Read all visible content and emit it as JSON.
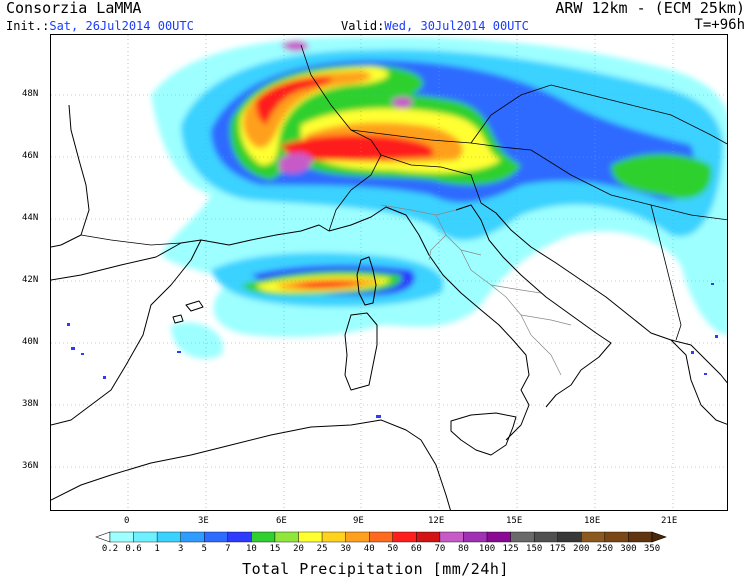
{
  "header": {
    "agency": "Consorzia LaMMA",
    "model": "ARW 12km - (ECM 25km)",
    "init_label": "Init.:",
    "init_value": "Sat, 26Jul2014 00UTC",
    "valid_label": "Valid:",
    "valid_value": "Wed, 30Jul2014 00UTC",
    "forecast_step": "T=+96h"
  },
  "axes": {
    "lat_labels": [
      "48N",
      "46N",
      "44N",
      "42N",
      "40N",
      "38N",
      "36N"
    ],
    "lon_labels": [
      "0",
      "3E",
      "6E",
      "9E",
      "12E",
      "15E",
      "18E",
      "21E"
    ]
  },
  "colorbar": {
    "title": "Total Precipitation [mm/24h]",
    "labels": [
      "0.2",
      "0.6",
      "1",
      "3",
      "5",
      "7",
      "10",
      "15",
      "20",
      "25",
      "30",
      "40",
      "50",
      "60",
      "70",
      "80",
      "100",
      "125",
      "150",
      "175",
      "200",
      "250",
      "300",
      "350"
    ],
    "colors": [
      "#9dffff",
      "#6ff0ff",
      "#3ad2ff",
      "#2f9cff",
      "#2e6bff",
      "#2e3bff",
      "#2fd02f",
      "#90e63a",
      "#ffff30",
      "#ffd21e",
      "#ffa01e",
      "#ff6a1e",
      "#ff1e1e",
      "#d21414",
      "#c85ac8",
      "#a030b4",
      "#8a0a96",
      "#6a6a6a",
      "#505050",
      "#383838",
      "#8c5a1e",
      "#7a4616",
      "#60340e",
      "#4a2808"
    ]
  },
  "colors": {
    "text_blue": "#1a3cff",
    "coastline": "#000000",
    "borders": "#888888",
    "grid": "#999999"
  }
}
